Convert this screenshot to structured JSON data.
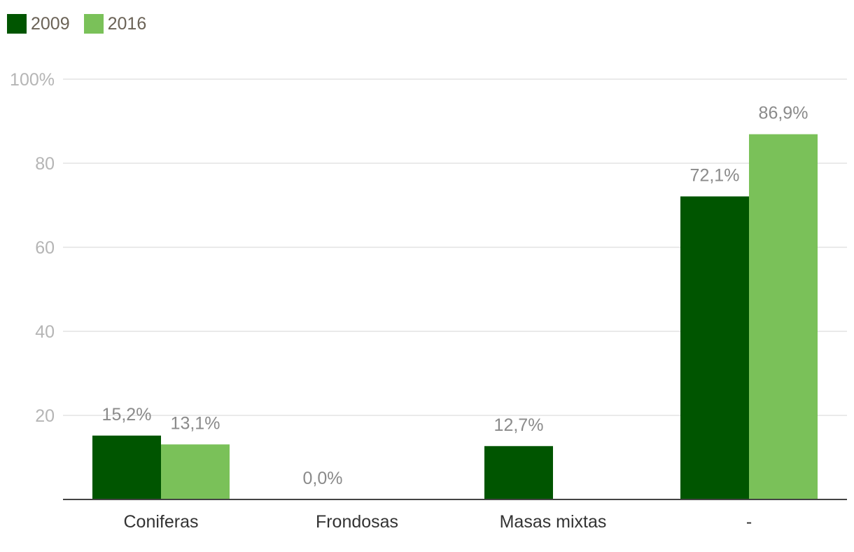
{
  "chart_data": {
    "type": "bar",
    "title": "",
    "xlabel": "",
    "ylabel": "",
    "categories": [
      "Coniferas",
      "Frondosas",
      "Masas mixtas",
      "-"
    ],
    "series": [
      {
        "name": "2009",
        "color": "#005500",
        "values": [
          15.2,
          0.0,
          12.7,
          72.1
        ],
        "labels": [
          "15,2%",
          "0,0%",
          "12,7%",
          "72,1%"
        ]
      },
      {
        "name": "2016",
        "color": "#7ac159",
        "values": [
          13.1,
          null,
          null,
          86.9
        ],
        "labels": [
          "13,1%",
          "",
          "",
          "86,9%"
        ]
      }
    ],
    "ylim": [
      0,
      100
    ],
    "yticks": [
      20,
      40,
      60,
      80,
      100
    ],
    "ytick_labels": [
      "20",
      "40",
      "60",
      "80",
      "100%"
    ],
    "grid": true,
    "legend_position": "top-left"
  }
}
